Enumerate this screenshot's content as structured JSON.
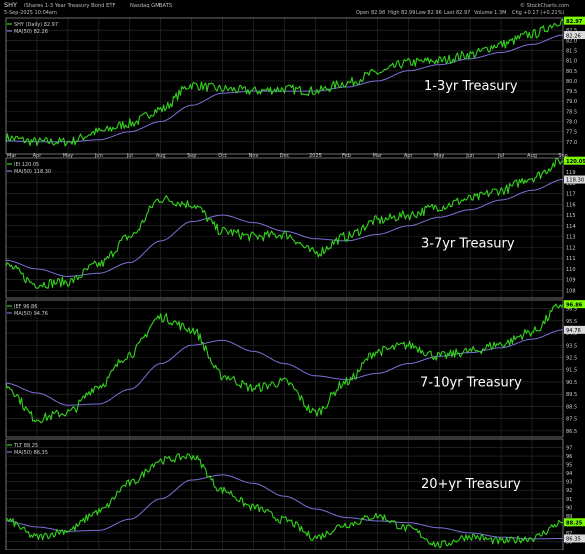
{
  "header": {
    "symbol": "SHY",
    "name": "iShares 1-3 Year Treasury Bond ETF",
    "exchange": "Nasdaq GM",
    "source": "BATS",
    "date": "5-Sep-2025 10:04am",
    "watermark": "© StockCharts.com",
    "open": "Open 82.98",
    "high": "High 82.99",
    "low": "Low 82.96",
    "last": "Last 82.97",
    "volume": "Volume 1.3M",
    "chg": "Chg +0.17 (+0.21%)"
  },
  "colors": {
    "background": "#000000",
    "price_line": "#34d21e",
    "ma_line": "#7a70d8",
    "grid": "#2e2e2e",
    "panel_border": "#9a9a9a",
    "text": "#cfcfcf",
    "highlight": "#7cfc00"
  },
  "x_axis": {
    "labels": [
      "Mar",
      "Apr",
      "May",
      "Jun",
      "Jul",
      "Aug",
      "Sep",
      "Oct",
      "Nov",
      "Dec",
      "2025",
      "Feb",
      "Mar",
      "Apr",
      "May",
      "Jun",
      "Jul",
      "Aug",
      "Sep"
    ]
  },
  "chart_data": [
    {
      "type": "line",
      "panel_title": "1-3yr Treasury",
      "legend_price": "SHY (Daily) 82.97",
      "legend_ma": "MA(50) 82.26",
      "last_label": "82.97",
      "ma_label": "82.26",
      "ylim": [
        76.4,
        83.1
      ],
      "ticks": [
        "77.0",
        "77.5",
        "78.0",
        "78.5",
        "79.0",
        "79.5",
        "80.0",
        "80.5",
        "81.0",
        "81.5",
        "82.0",
        "82.5"
      ],
      "x": [
        "Mar 2024",
        "Apr",
        "May",
        "Jun",
        "Jul",
        "Aug",
        "Sep",
        "Oct",
        "Nov",
        "Dec",
        "Jan 2025",
        "Feb",
        "Mar",
        "Apr",
        "May",
        "Jun",
        "Jul",
        "Aug",
        "Sep"
      ],
      "series": [
        {
          "values": [
            77.2,
            77.0,
            77.0,
            77.5,
            77.9,
            78.6,
            79.8,
            79.6,
            79.5,
            79.6,
            79.5,
            79.9,
            80.4,
            80.9,
            81.0,
            81.3,
            81.8,
            82.3,
            82.97
          ]
        },
        {
          "values": [
            77.05,
            77.0,
            77.0,
            77.1,
            77.5,
            78.0,
            78.8,
            79.4,
            79.5,
            79.5,
            79.5,
            79.7,
            80.0,
            80.5,
            80.8,
            81.1,
            81.4,
            81.8,
            82.26
          ]
        }
      ]
    },
    {
      "type": "line",
      "panel_title": "3-7yr Treasury",
      "legend_price": "IEI 120.05",
      "legend_ma": "MA(50) 118.30",
      "last_label": "120.05",
      "ma_label": "118.30",
      "ylim": [
        107.3,
        120.3
      ],
      "ticks": [
        "108",
        "109",
        "110",
        "111",
        "112",
        "113",
        "114",
        "115",
        "116",
        "117",
        "118",
        "119"
      ],
      "x": [
        "Mar 2024",
        "Apr",
        "May",
        "Jun",
        "Jul",
        "Aug",
        "Sep",
        "Oct",
        "Nov",
        "Dec",
        "Jan 2025",
        "Feb",
        "Mar",
        "Apr",
        "May",
        "Jun",
        "Jul",
        "Aug",
        "Sep"
      ],
      "series": [
        {
          "values": [
            110.3,
            108.6,
            108.8,
            110.4,
            113.0,
            116.5,
            116.0,
            113.5,
            113.0,
            113.2,
            111.5,
            113.0,
            114.5,
            115.0,
            115.8,
            116.5,
            117.3,
            118.5,
            120.05
          ]
        },
        {
          "values": [
            110.8,
            110.0,
            109.3,
            109.6,
            110.6,
            112.6,
            114.4,
            115.0,
            114.3,
            113.5,
            112.8,
            112.6,
            113.2,
            114.0,
            114.8,
            115.5,
            116.4,
            117.3,
            118.3
          ]
        }
      ]
    },
    {
      "type": "line",
      "panel_title": "7-10yr Treasury",
      "legend_price": "IEF 96.86",
      "legend_ma": "MA(50) 94.76",
      "last_label": "96.86",
      "ma_label": "94.76",
      "ylim": [
        86.0,
        97.2
      ],
      "ticks": [
        "86.5",
        "87.5",
        "88.5",
        "89.5",
        "90.5",
        "91.5",
        "92.5",
        "93.5",
        "94.5",
        "95.5",
        "96.5"
      ],
      "x": [
        "Mar 2024",
        "Apr",
        "May",
        "Jun",
        "Jul",
        "Aug",
        "Sep",
        "Oct",
        "Nov",
        "Dec",
        "Jan 2025",
        "Feb",
        "Mar",
        "Apr",
        "May",
        "Jun",
        "Jul",
        "Aug",
        "Sep"
      ],
      "series": [
        {
          "values": [
            90.2,
            87.5,
            88.0,
            90.2,
            92.8,
            95.8,
            94.8,
            91.0,
            90.0,
            90.5,
            88.0,
            90.5,
            93.0,
            93.5,
            92.6,
            93.0,
            93.6,
            94.6,
            96.86
          ]
        },
        {
          "values": [
            90.4,
            89.6,
            88.6,
            88.7,
            89.9,
            92.0,
            93.5,
            93.9,
            93.0,
            92.0,
            91.0,
            90.7,
            91.2,
            92.0,
            92.6,
            92.9,
            93.3,
            94.0,
            94.76
          ]
        }
      ]
    },
    {
      "type": "line",
      "panel_title": "20+yr Treasury",
      "legend_price": "TLT 88.25",
      "legend_ma": "MA(50) 86.35",
      "last_label": "88.25",
      "ma_label": "86.35",
      "ylim": [
        85.0,
        98.0
      ],
      "ticks": [
        "86",
        "87",
        "88",
        "89",
        "90",
        "91",
        "92",
        "93",
        "94",
        "95",
        "96",
        "97"
      ],
      "x": [
        "Mar 2024",
        "Apr",
        "May",
        "Jun",
        "Jul",
        "Aug",
        "Sep",
        "Oct",
        "Nov",
        "Dec",
        "Jan 2025",
        "Feb",
        "Mar",
        "Apr",
        "May",
        "Jun",
        "Jul",
        "Aug",
        "Sep"
      ],
      "series": [
        {
          "values": [
            88.5,
            86.5,
            87.3,
            89.5,
            92.8,
            95.5,
            96.0,
            92.0,
            90.0,
            88.5,
            86.5,
            88.0,
            89.0,
            87.5,
            85.6,
            86.6,
            86.0,
            86.4,
            88.25
          ]
        },
        {
          "values": [
            88.4,
            87.7,
            87.2,
            87.3,
            88.6,
            91.0,
            93.2,
            93.8,
            92.8,
            91.3,
            89.8,
            88.8,
            88.4,
            88.2,
            87.6,
            87.0,
            86.5,
            86.3,
            86.35
          ]
        }
      ]
    }
  ]
}
